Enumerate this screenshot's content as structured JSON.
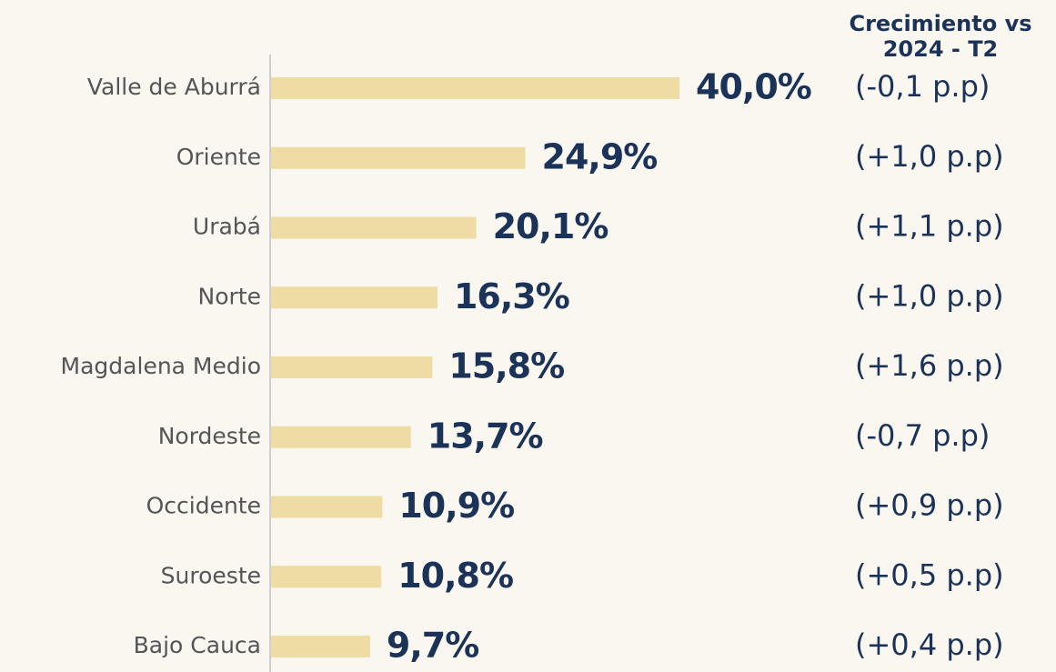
{
  "chart_data": {
    "type": "hbar",
    "categories": [
      "Valle de Aburrá",
      "Oriente",
      "Urabá",
      "Norte",
      "Magdalena Medio",
      "Nordeste",
      "Occidente",
      "Suroeste",
      "Bajo Cauca"
    ],
    "values": [
      40.0,
      24.9,
      20.1,
      16.3,
      15.8,
      13.7,
      10.9,
      10.8,
      9.7
    ],
    "value_labels": [
      "40,0%",
      "24,9%",
      "20,1%",
      "16,3%",
      "15,8%",
      "13,7%",
      "10,9%",
      "10,8%",
      "9,7%"
    ],
    "color": "#efdca5",
    "annotation_header": [
      "Crecimiento vs",
      "2024 - T2"
    ],
    "annotations": [
      "(-0,1 p.p)",
      "(+1,0 p.p)",
      "(+1,1 p.p)",
      "(+1,0 p.p)",
      "(+1,6 p.p)",
      "(-0,7 p.p)",
      "(+0,9 p.p)",
      "(+0,5 p.p)",
      "(+0,4 p.p)"
    ]
  }
}
